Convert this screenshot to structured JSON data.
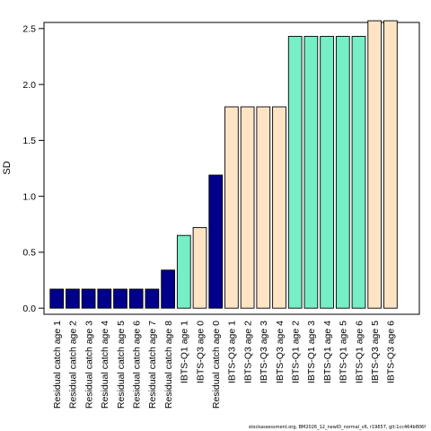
{
  "chart_data": {
    "type": "bar",
    "title": "",
    "xlabel": "",
    "ylabel": "SD",
    "ylim": [
      0,
      2.57
    ],
    "y_ticks": [
      0.0,
      0.5,
      1.0,
      1.5,
      2.0,
      2.5
    ],
    "y_tick_labels": [
      "0.0",
      "0.5",
      "1.0",
      "1.5",
      "2.0",
      "2.5"
    ],
    "grid": false,
    "legend": "none",
    "categories": [
      "Residual catch age 1",
      "Residual catch age 2",
      "Residual catch age 3",
      "Residual catch age 4",
      "Residual catch age 5",
      "Residual catch age 6",
      "Residual catch age 7",
      "Residual catch age 8",
      "IBTS-Q1 age 1",
      "IBTS-Q3 age 0",
      "Residual catch age 0",
      "IBTS-Q3 age 1",
      "IBTS-Q3 age 2",
      "IBTS-Q3 age 3",
      "IBTS-Q3 age 4",
      "IBTS-Q1 age 2",
      "IBTS-Q1 age 3",
      "IBTS-Q1 age 4",
      "IBTS-Q1 age 5",
      "IBTS-Q1 age 6",
      "IBTS-Q3 age 5",
      "IBTS-Q3 age 6"
    ],
    "values": [
      0.17,
      0.17,
      0.17,
      0.17,
      0.17,
      0.17,
      0.17,
      0.34,
      0.65,
      0.72,
      1.19,
      1.8,
      1.8,
      1.8,
      1.8,
      2.43,
      2.43,
      2.43,
      2.43,
      2.43,
      2.57,
      2.57
    ],
    "bar_colors": [
      "#00008B",
      "#00008B",
      "#00008B",
      "#00008B",
      "#00008B",
      "#00008B",
      "#00008B",
      "#00008B",
      "#76EEC6",
      "#FFE4C4",
      "#00008B",
      "#FFE4C4",
      "#FFE4C4",
      "#FFE4C4",
      "#FFE4C4",
      "#76EEC6",
      "#76EEC6",
      "#76EEC6",
      "#76EEC6",
      "#76EEC6",
      "#FFE4C4",
      "#FFE4C4"
    ],
    "colors": {
      "residual_catch": "#00008B",
      "ibts_q1": "#76EEC6",
      "ibts_q3": "#FFE4C4",
      "bar_border": "#000000",
      "axis": "#000000"
    }
  },
  "footnote": "stockassessment.org, BM2026_12_newID_normal_v6, r19657, git:1cc464b806f"
}
